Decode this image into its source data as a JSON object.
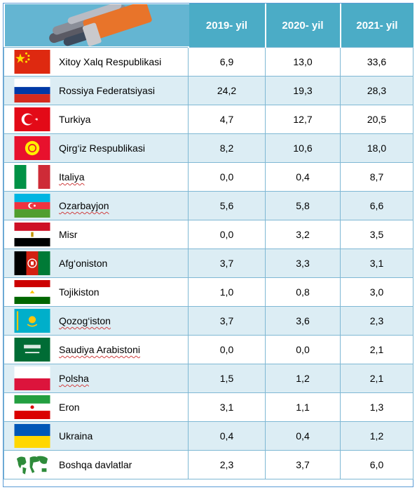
{
  "header": {
    "image_icon": "fabric-rolls-icon",
    "columns": [
      "2019- yil",
      "2020- yil",
      "2021- yil"
    ]
  },
  "rows": [
    {
      "country": "Xitoy Xalq Respublikasi",
      "flag_icon": "china-flag-icon",
      "v2019": "6,9",
      "v2020": "13,0",
      "v2021": "33,6",
      "wavy": false
    },
    {
      "country": "Rossiya Federatsiyasi",
      "flag_icon": "russia-flag-icon",
      "v2019": "24,2",
      "v2020": "19,3",
      "v2021": "28,3",
      "wavy": false
    },
    {
      "country": "Turkiya",
      "flag_icon": "turkey-flag-icon",
      "v2019": "4,7",
      "v2020": "12,7",
      "v2021": "20,5",
      "wavy": false
    },
    {
      "country": "Qirg‘iz Respublikasi",
      "flag_icon": "kyrgyzstan-flag-icon",
      "v2019": "8,2",
      "v2020": "10,6",
      "v2021": "18,0",
      "wavy": false
    },
    {
      "country": "Italiya",
      "flag_icon": "italy-flag-icon",
      "v2019": "0,0",
      "v2020": "0,4",
      "v2021": "8,7",
      "wavy": true
    },
    {
      "country": "Ozarbayjon",
      "flag_icon": "azerbaijan-flag-icon",
      "v2019": "5,6",
      "v2020": "5,8",
      "v2021": "6,6",
      "wavy": true
    },
    {
      "country": "Misr",
      "flag_icon": "egypt-flag-icon",
      "v2019": "0,0",
      "v2020": "3,2",
      "v2021": "3,5",
      "wavy": false
    },
    {
      "country": "Afg‘oniston",
      "flag_icon": "afghanistan-flag-icon",
      "v2019": "3,7",
      "v2020": "3,3",
      "v2021": "3,1",
      "wavy": false
    },
    {
      "country": "Tojikiston",
      "flag_icon": "tajikistan-flag-icon",
      "v2019": "1,0",
      "v2020": "0,8",
      "v2021": "3,0",
      "wavy": false
    },
    {
      "country": "Qozog‘iston",
      "flag_icon": "kazakhstan-flag-icon",
      "v2019": "3,7",
      "v2020": "3,6",
      "v2021": "2,3",
      "wavy": true
    },
    {
      "country": "Saudiya Arabistoni",
      "flag_icon": "saudi-arabia-flag-icon",
      "v2019": "0,0",
      "v2020": "0,0",
      "v2021": "2,1",
      "wavy": true
    },
    {
      "country": "Polsha",
      "flag_icon": "poland-flag-icon",
      "v2019": "1,5",
      "v2020": "1,2",
      "v2021": "2,1",
      "wavy": true
    },
    {
      "country": "Eron",
      "flag_icon": "iran-flag-icon",
      "v2019": "3,1",
      "v2020": "1,1",
      "v2021": "1,3",
      "wavy": false
    },
    {
      "country": "Ukraina",
      "flag_icon": "ukraine-flag-icon",
      "v2019": "0,4",
      "v2020": "0,4",
      "v2021": "1,2",
      "wavy": false
    },
    {
      "country": "Boshqa davlatlar",
      "flag_icon": "world-map-icon",
      "v2019": "2,3",
      "v2020": "3,7",
      "v2021": "6,0",
      "wavy": false
    }
  ],
  "colors": {
    "header": "#4bacc6",
    "stripe": "#dcedf4",
    "border": "#7fb8d4"
  }
}
